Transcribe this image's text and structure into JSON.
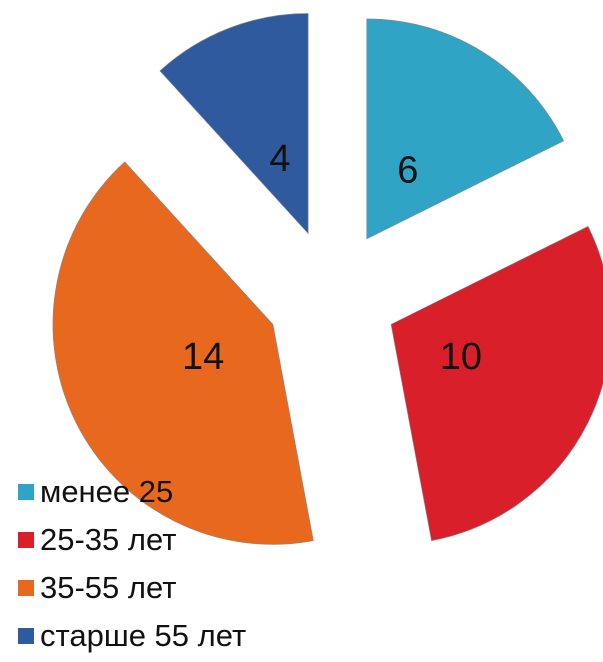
{
  "chart_data": {
    "type": "pie",
    "categories": [
      "менее 25",
      "25-35 лет",
      "35-55 лет",
      "старше 55 лет"
    ],
    "values": [
      6,
      10,
      14,
      4
    ],
    "colors": [
      "#2fa4c4",
      "#d9202a",
      "#e8681e",
      "#2f5b9e"
    ],
    "legend": "bottom-left"
  }
}
